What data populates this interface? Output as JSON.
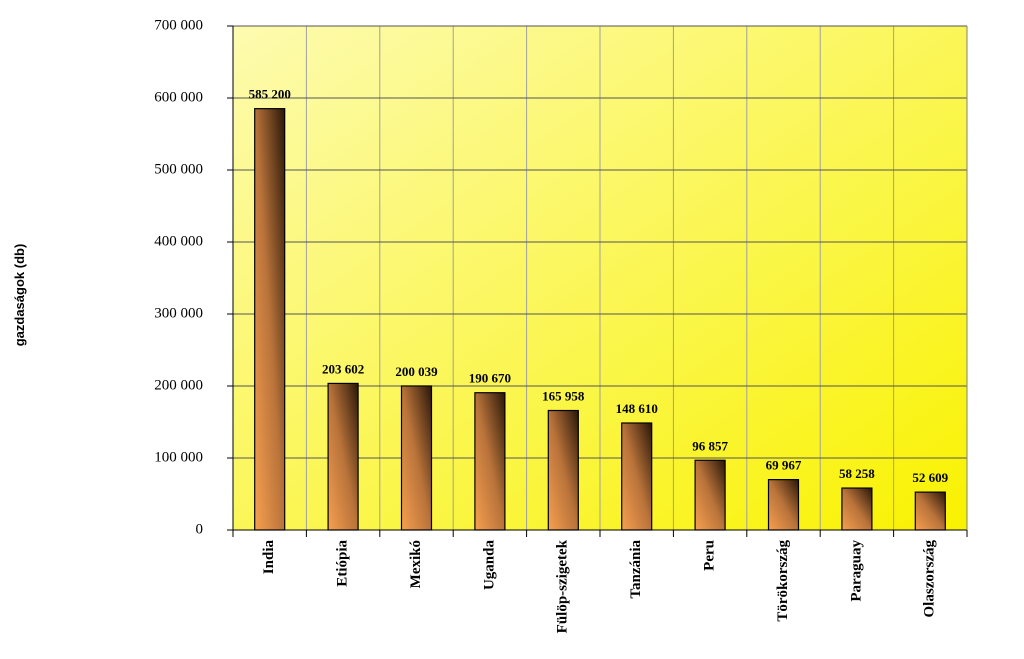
{
  "chart_data": {
    "type": "bar",
    "y_label": "gazdaságok (db)",
    "categories": [
      "India",
      "Etiópia",
      "Mexikó",
      "Uganda",
      "Fülöp-szigetek",
      "Tanzánia",
      "Peru",
      "Törökország",
      "Paraguay",
      "Olaszország"
    ],
    "values": [
      585200,
      203602,
      200039,
      190670,
      165958,
      148610,
      96857,
      69967,
      58258,
      52609
    ],
    "value_labels": [
      "585 200",
      "203 602",
      "200 039",
      "190 670",
      "165 958",
      "148 610",
      "96 857",
      "69 967",
      "58 258",
      "52 609"
    ],
    "ylim": [
      0,
      700000
    ],
    "yticks": [
      {
        "value": 0,
        "label": "0"
      },
      {
        "value": 100000,
        "label": "100 000"
      },
      {
        "value": 200000,
        "label": "200 000"
      },
      {
        "value": 300000,
        "label": "300 000"
      },
      {
        "value": 400000,
        "label": "400 000"
      },
      {
        "value": 500000,
        "label": "500 000"
      },
      {
        "value": 600000,
        "label": "600 000"
      },
      {
        "value": 700000,
        "label": "700 000"
      }
    ],
    "grid": true
  }
}
